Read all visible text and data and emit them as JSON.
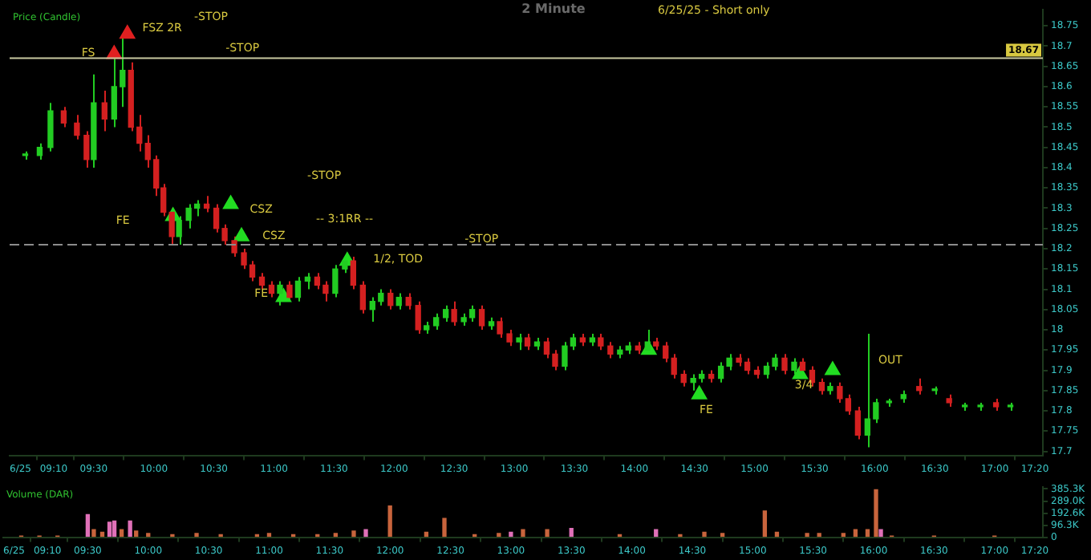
{
  "chart_data": [
    {
      "type": "candlestick",
      "title": "2 Minute",
      "subtitle": "6/25/25 - Short only",
      "ylabel": "Price (Candle)",
      "xlim": [
        8.8,
        17.4
      ],
      "xticks": [
        {
          "value": 8.89,
          "label": "6/25"
        },
        {
          "value": 9.1667,
          "label": "09:10"
        },
        {
          "value": 9.5,
          "label": "09:30"
        },
        {
          "value": 10,
          "label": "10:00"
        },
        {
          "value": 10.5,
          "label": "10:30"
        },
        {
          "value": 11,
          "label": "11:00"
        },
        {
          "value": 11.5,
          "label": "11:30"
        },
        {
          "value": 12,
          "label": "12:00"
        },
        {
          "value": 12.5,
          "label": "12:30"
        },
        {
          "value": 13,
          "label": "13:00"
        },
        {
          "value": 13.5,
          "label": "13:30"
        },
        {
          "value": 14,
          "label": "14:00"
        },
        {
          "value": 14.5,
          "label": "14:30"
        },
        {
          "value": 15,
          "label": "15:00"
        },
        {
          "value": 15.5,
          "label": "15:30"
        },
        {
          "value": 16,
          "label": "16:00"
        },
        {
          "value": 16.5,
          "label": "16:30"
        },
        {
          "value": 17,
          "label": "17:00"
        },
        {
          "value": 17.3333,
          "label": "17:20"
        }
      ],
      "ylim": [
        17.69,
        18.79
      ],
      "yticks": [
        17.7,
        17.75,
        17.8,
        17.85,
        17.9,
        17.95,
        18,
        18.05,
        18.1,
        18.15,
        18.2,
        18.25,
        18.3,
        18.35,
        18.4,
        18.45,
        18.5,
        18.55,
        18.6,
        18.65,
        18.7,
        18.75
      ],
      "series": [
        {
          "type": "candlestick",
          "colors": [
            "#22cc22",
            "#22cc22",
            "#22cc22",
            "#d42020",
            "#d42020",
            "#d42020",
            "#22cc22",
            "#d42020",
            "#22cc22",
            "#22cc22",
            "#d42020",
            "#d42020",
            "#d42020",
            "#d42020",
            "#d42020",
            "#d42020",
            "#22cc22",
            "#22cc22",
            "#22cc22",
            "#d42020",
            "#d42020",
            "#d42020",
            "#d42020",
            "#d42020",
            "#d42020",
            "#d42020",
            "#d42020",
            "#22cc22",
            "#d42020",
            "#22cc22",
            "#22cc22",
            "#d42020",
            "#d42020",
            "#22cc22",
            "#22cc22",
            "#d42020",
            "#d42020",
            "#22cc22",
            "#22cc22",
            "#d42020",
            "#22cc22",
            "#d42020",
            "#d42020",
            "#22cc22",
            "#22cc22",
            "#22cc22",
            "#d42020",
            "#22cc22",
            "#22cc22",
            "#d42020",
            "#22cc22",
            "#d42020",
            "#d42020",
            "#22cc22",
            "#d42020",
            "#22cc22",
            "#d42020",
            "#d42020",
            "#22cc22",
            "#22cc22",
            "#d42020",
            "#22cc22",
            "#d42020",
            "#d42020",
            "#22cc22",
            "#22cc22",
            "#d42020",
            "#22cc22",
            "#d42020",
            "#d42020",
            "#d42020",
            "#d42020",
            "#22cc22",
            "#22cc22",
            "#d42020",
            "#22cc22",
            "#22cc22",
            "#d42020",
            "#d42020",
            "#d42020",
            "#22cc22",
            "#22cc22",
            "#d42020",
            "#22cc22",
            "#d42020",
            "#d42020",
            "#d42020",
            "#22cc22",
            "#d42020",
            "#d42020",
            "#d42020",
            "#22cc22",
            "#22cc22",
            "#22cc22",
            "#22cc22",
            "#d42020",
            "#22cc22",
            "#d42020",
            "#22cc22",
            "#22cc22",
            "#d42020",
            "#22cc22"
          ],
          "x": [
            8.93,
            9.05,
            9.14,
            9.25,
            9.36,
            9.44,
            9.5,
            9.59,
            9.67,
            9.74,
            9.81,
            9.88,
            9.95,
            10.02,
            10.08,
            10.15,
            10.21,
            10.29,
            10.36,
            10.44,
            10.52,
            10.59,
            10.67,
            10.75,
            10.82,
            10.9,
            10.98,
            11.05,
            11.13,
            11.2,
            11.28,
            11.36,
            11.43,
            11.51,
            11.59,
            11.66,
            11.74,
            11.82,
            11.89,
            11.97,
            12.04,
            12.12,
            12.2,
            12.27,
            12.35,
            12.43,
            12.5,
            12.58,
            12.65,
            12.73,
            12.81,
            12.88,
            12.96,
            13.04,
            13.11,
            13.19,
            13.27,
            13.34,
            13.42,
            13.49,
            13.57,
            13.65,
            13.72,
            13.8,
            13.88,
            13.95,
            14.03,
            14.11,
            14.18,
            14.26,
            14.33,
            14.41,
            14.49,
            14.56,
            14.64,
            14.72,
            14.79,
            14.87,
            14.94,
            15.02,
            15.1,
            15.17,
            15.25,
            15.33,
            15.4,
            15.48,
            15.56,
            15.63,
            15.71,
            15.78,
            15.86,
            15.94,
            16.01,
            16.12,
            16.24,
            16.37,
            16.5,
            16.62,
            16.75,
            16.88,
            17.01,
            17.13
          ],
          "ohlc": [
            [
              18.43,
              18.44,
              18.42,
              18.43
            ],
            [
              18.43,
              18.46,
              18.42,
              18.45
            ],
            [
              18.45,
              18.56,
              18.44,
              18.54
            ],
            [
              18.54,
              18.55,
              18.5,
              18.51
            ],
            [
              18.51,
              18.53,
              18.47,
              18.48
            ],
            [
              18.48,
              18.49,
              18.4,
              18.42
            ],
            [
              18.42,
              18.63,
              18.4,
              18.56
            ],
            [
              18.56,
              18.59,
              18.49,
              18.52
            ],
            [
              18.52,
              18.68,
              18.5,
              18.6
            ],
            [
              18.6,
              18.73,
              18.55,
              18.64
            ],
            [
              18.64,
              18.66,
              18.49,
              18.5
            ],
            [
              18.5,
              18.53,
              18.44,
              18.46
            ],
            [
              18.46,
              18.48,
              18.4,
              18.42
            ],
            [
              18.42,
              18.43,
              18.33,
              18.35
            ],
            [
              18.35,
              18.36,
              18.28,
              18.29
            ],
            [
              18.29,
              18.3,
              18.21,
              18.23
            ],
            [
              18.23,
              18.28,
              18.21,
              18.27
            ],
            [
              18.27,
              18.31,
              18.25,
              18.3
            ],
            [
              18.3,
              18.32,
              18.28,
              18.31
            ],
            [
              18.31,
              18.33,
              18.29,
              18.3
            ],
            [
              18.3,
              18.31,
              18.24,
              18.25
            ],
            [
              18.25,
              18.26,
              18.21,
              18.22
            ],
            [
              18.22,
              18.23,
              18.18,
              18.19
            ],
            [
              18.19,
              18.2,
              18.15,
              18.16
            ],
            [
              18.16,
              18.17,
              18.12,
              18.13
            ],
            [
              18.13,
              18.14,
              18.1,
              18.11
            ],
            [
              18.11,
              18.12,
              18.08,
              18.09
            ],
            [
              18.09,
              18.12,
              18.06,
              18.11
            ],
            [
              18.11,
              18.12,
              18.07,
              18.08
            ],
            [
              18.08,
              18.13,
              18.07,
              18.12
            ],
            [
              18.12,
              18.14,
              18.1,
              18.13
            ],
            [
              18.13,
              18.14,
              18.1,
              18.11
            ],
            [
              18.11,
              18.12,
              18.07,
              18.09
            ],
            [
              18.09,
              18.16,
              18.08,
              18.15
            ],
            [
              18.15,
              18.18,
              18.14,
              18.17
            ],
            [
              18.17,
              18.18,
              18.1,
              18.11
            ],
            [
              18.11,
              18.12,
              18.04,
              18.05
            ],
            [
              18.05,
              18.08,
              18.02,
              18.07
            ],
            [
              18.07,
              18.1,
              18.06,
              18.09
            ],
            [
              18.09,
              18.1,
              18.05,
              18.06
            ],
            [
              18.06,
              18.09,
              18.05,
              18.08
            ],
            [
              18.08,
              18.09,
              18.05,
              18.06
            ],
            [
              18.06,
              18.07,
              17.99,
              18
            ],
            [
              18,
              18.02,
              17.99,
              18.01
            ],
            [
              18.01,
              18.04,
              18,
              18.03
            ],
            [
              18.03,
              18.06,
              18.02,
              18.05
            ],
            [
              18.05,
              18.07,
              18.01,
              18.02
            ],
            [
              18.02,
              18.04,
              18.01,
              18.03
            ],
            [
              18.03,
              18.06,
              18.02,
              18.05
            ],
            [
              18.05,
              18.06,
              18,
              18.01
            ],
            [
              18.01,
              18.03,
              18,
              18.02
            ],
            [
              18.02,
              18.03,
              17.98,
              17.99
            ],
            [
              17.99,
              18,
              17.96,
              17.97
            ],
            [
              17.97,
              17.99,
              17.95,
              17.98
            ],
            [
              17.98,
              17.99,
              17.95,
              17.96
            ],
            [
              17.96,
              17.98,
              17.95,
              17.97
            ],
            [
              17.97,
              17.98,
              17.93,
              17.94
            ],
            [
              17.94,
              17.95,
              17.9,
              17.91
            ],
            [
              17.91,
              17.97,
              17.9,
              17.96
            ],
            [
              17.96,
              17.99,
              17.95,
              17.98
            ],
            [
              17.98,
              17.99,
              17.96,
              17.97
            ],
            [
              17.97,
              17.99,
              17.96,
              17.98
            ],
            [
              17.98,
              17.99,
              17.95,
              17.96
            ],
            [
              17.96,
              17.97,
              17.93,
              17.94
            ],
            [
              17.94,
              17.96,
              17.93,
              17.95
            ],
            [
              17.95,
              17.97,
              17.94,
              17.96
            ],
            [
              17.96,
              17.97,
              17.94,
              17.95
            ],
            [
              17.95,
              18,
              17.94,
              17.97
            ],
            [
              17.97,
              17.98,
              17.95,
              17.96
            ],
            [
              17.96,
              17.97,
              17.92,
              17.93
            ],
            [
              17.93,
              17.94,
              17.88,
              17.89
            ],
            [
              17.89,
              17.9,
              17.86,
              17.87
            ],
            [
              17.87,
              17.89,
              17.85,
              17.88
            ],
            [
              17.88,
              17.9,
              17.87,
              17.89
            ],
            [
              17.89,
              17.9,
              17.87,
              17.88
            ],
            [
              17.88,
              17.92,
              17.87,
              17.91
            ],
            [
              17.91,
              17.94,
              17.9,
              17.93
            ],
            [
              17.93,
              17.94,
              17.91,
              17.92
            ],
            [
              17.92,
              17.93,
              17.89,
              17.9
            ],
            [
              17.9,
              17.91,
              17.88,
              17.89
            ],
            [
              17.89,
              17.92,
              17.88,
              17.91
            ],
            [
              17.91,
              17.94,
              17.9,
              17.93
            ],
            [
              17.93,
              17.94,
              17.89,
              17.9
            ],
            [
              17.9,
              17.93,
              17.89,
              17.92
            ],
            [
              17.92,
              17.93,
              17.89,
              17.9
            ],
            [
              17.9,
              17.91,
              17.86,
              17.87
            ],
            [
              17.87,
              17.88,
              17.84,
              17.85
            ],
            [
              17.85,
              17.87,
              17.84,
              17.86
            ],
            [
              17.86,
              17.87,
              17.82,
              17.83
            ],
            [
              17.83,
              17.84,
              17.79,
              17.8
            ],
            [
              17.8,
              17.81,
              17.73,
              17.74
            ],
            [
              17.74,
              17.99,
              17.71,
              17.78
            ],
            [
              17.78,
              17.83,
              17.77,
              17.82
            ],
            [
              17.82,
              17.83,
              17.81,
              17.82
            ],
            [
              17.83,
              17.85,
              17.82,
              17.84
            ],
            [
              17.86,
              17.88,
              17.84,
              17.85
            ],
            [
              17.85,
              17.86,
              17.84,
              17.85
            ],
            [
              17.83,
              17.84,
              17.81,
              17.82
            ],
            [
              17.81,
              17.82,
              17.8,
              17.81
            ],
            [
              17.81,
              17.82,
              17.8,
              17.81
            ],
            [
              17.82,
              17.83,
              17.8,
              17.81
            ],
            [
              17.81,
              17.82,
              17.8,
              17.81
            ]
          ]
        },
        {
          "type": "scatter",
          "marker": "triangle",
          "color": "#22dd22",
          "x": [
            10.16,
            10.64,
            10.73,
            11.08,
            11.61,
            14.12,
            14.54,
            15.38,
            15.65
          ],
          "values": [
            18.28,
            18.31,
            18.23,
            18.08,
            18.17,
            17.95,
            17.84,
            17.89,
            17.9
          ]
        },
        {
          "type": "scatter",
          "marker": "triangle",
          "color": "#e02020",
          "x": [
            9.67,
            9.78
          ],
          "values": [
            18.68,
            18.73
          ]
        }
      ],
      "ref_lines": [
        {
          "axis": "y",
          "value": 18.67,
          "label": "18.67",
          "color": "#c8c8a0",
          "line_style": "solid"
        },
        {
          "axis": "y",
          "value": 18.21,
          "color": "#8c8c8c",
          "line_style": "dashed"
        }
      ],
      "annotations": [
        "FSZ 2R",
        "-STOP",
        "FS",
        "-STOP",
        "-STOP",
        "FE",
        "CSZ",
        "-- 3:1RR --",
        "CSZ",
        "-STOP",
        "1/2, TOD",
        "FE",
        "FE",
        "3/4",
        "OUT"
      ]
    },
    {
      "type": "bar",
      "ylabel": "Volume (DAR)",
      "xlim": [
        8.8,
        17.4
      ],
      "xticks": [
        {
          "value": 8.89,
          "label": "6/25"
        },
        {
          "value": 9.1667,
          "label": "09:10"
        },
        {
          "value": 9.5,
          "label": "09:30"
        },
        {
          "value": 10,
          "label": "10:00"
        },
        {
          "value": 10.5,
          "label": "10:30"
        },
        {
          "value": 11,
          "label": "11:00"
        },
        {
          "value": 11.5,
          "label": "11:30"
        },
        {
          "value": 12,
          "label": "12:00"
        },
        {
          "value": 12.5,
          "label": "12:30"
        },
        {
          "value": 13,
          "label": "13:00"
        },
        {
          "value": 13.5,
          "label": "13:30"
        },
        {
          "value": 14,
          "label": "14:00"
        },
        {
          "value": 14.5,
          "label": "14:30"
        },
        {
          "value": 15,
          "label": "15:00"
        },
        {
          "value": 15.5,
          "label": "15:30"
        },
        {
          "value": 16,
          "label": "16:00"
        },
        {
          "value": 16.5,
          "label": "16:30"
        },
        {
          "value": 17,
          "label": "17:00"
        },
        {
          "value": 17.3333,
          "label": "17:20"
        }
      ],
      "ylim": [
        0,
        400000
      ],
      "yticks": [
        0,
        {
          "value": 96300,
          "label": "96.3K"
        },
        {
          "value": 192600,
          "label": "192.6K"
        },
        {
          "value": 289000,
          "label": "289.0K"
        },
        {
          "value": 385300,
          "label": "385.3K"
        }
      ],
      "x": [
        8.95,
        9.1,
        9.25,
        9.5,
        9.55,
        9.62,
        9.68,
        9.72,
        9.78,
        9.85,
        9.9,
        10,
        10.2,
        10.4,
        10.6,
        10.9,
        11,
        11.2,
        11.4,
        11.55,
        11.7,
        11.8,
        12,
        12.3,
        12.45,
        12.7,
        12.9,
        13,
        13.1,
        13.3,
        13.5,
        13.9,
        14.2,
        14.4,
        14.6,
        14.75,
        15.1,
        15.2,
        15.45,
        15.55,
        15.75,
        15.85,
        15.95,
        16.02,
        16.06,
        16.15,
        16.5,
        17
      ],
      "values": [
        10000,
        10000,
        10000,
        180000,
        60000,
        40000,
        120000,
        130000,
        60000,
        130000,
        50000,
        30000,
        20000,
        30000,
        20000,
        20000,
        30000,
        20000,
        20000,
        30000,
        50000,
        60000,
        250000,
        40000,
        150000,
        20000,
        30000,
        40000,
        60000,
        60000,
        70000,
        20000,
        60000,
        20000,
        40000,
        30000,
        210000,
        40000,
        30000,
        30000,
        30000,
        60000,
        60000,
        380000,
        60000,
        10000,
        10000,
        10000
      ],
      "colors": [
        "#c8643c",
        "#c8643c",
        "#c8643c",
        "#e070b8",
        "#c8643c",
        "#c8643c",
        "#e070b8",
        "#e070b8",
        "#c8643c",
        "#e070b8",
        "#c8643c",
        "#c8643c",
        "#c8643c",
        "#c8643c",
        "#c8643c",
        "#c8643c",
        "#c8643c",
        "#c8643c",
        "#c8643c",
        "#c8643c",
        "#c8643c",
        "#e070b8",
        "#c8643c",
        "#c8643c",
        "#c8643c",
        "#c8643c",
        "#c8643c",
        "#e070b8",
        "#c8643c",
        "#c8643c",
        "#e070b8",
        "#c8643c",
        "#e070b8",
        "#c8643c",
        "#c8643c",
        "#c8643c",
        "#c8643c",
        "#c8643c",
        "#c8643c",
        "#c8643c",
        "#c8643c",
        "#c8643c",
        "#c8643c",
        "#c8643c",
        "#e070b8",
        "#c8643c",
        "#c8643c",
        "#c8643c"
      ]
    }
  ]
}
